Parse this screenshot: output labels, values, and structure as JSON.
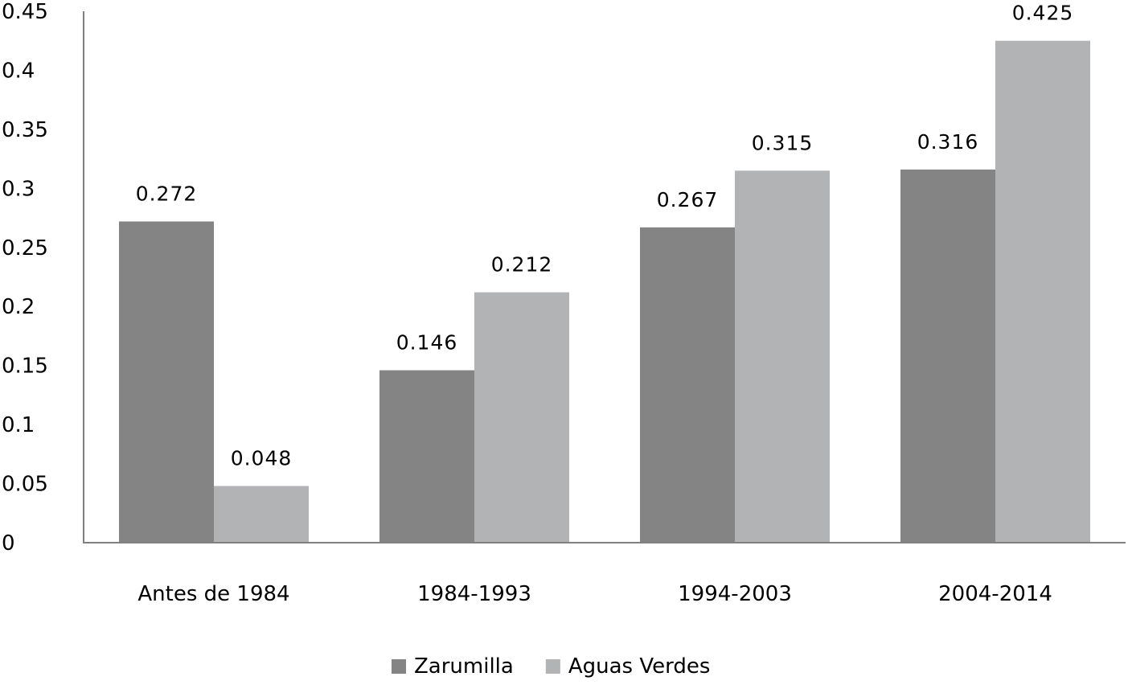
{
  "chart_data": {
    "type": "bar",
    "title": "",
    "xlabel": "",
    "ylabel": "",
    "ylim": [
      0,
      0.45
    ],
    "yticks": [
      "0",
      "0.05",
      "0.1",
      "0.15",
      "0.2",
      "0.25",
      "0.3",
      "0.35",
      "0.4",
      "0.45"
    ],
    "yticks_values": [
      0,
      0.05,
      0.1,
      0.15,
      0.2,
      0.25,
      0.3,
      0.35,
      0.4,
      0.45
    ],
    "categories": [
      "Antes de 1984",
      "1984-1993",
      "1994-2003",
      "2004-2014"
    ],
    "series": [
      {
        "name": "Zarumilla",
        "color": "#848484",
        "values": [
          0.272,
          0.146,
          0.267,
          0.316
        ],
        "labels": [
          "0.272",
          "0.146",
          "0.267",
          "0.316"
        ]
      },
      {
        "name": "Aguas Verdes",
        "color": "#b2b3b5",
        "values": [
          0.048,
          0.212,
          0.315,
          0.425
        ],
        "labels": [
          "0.048",
          "0.212",
          "0.315",
          "0.425"
        ]
      }
    ],
    "grid": false,
    "legend": "bottom-center",
    "data_labels": true
  }
}
